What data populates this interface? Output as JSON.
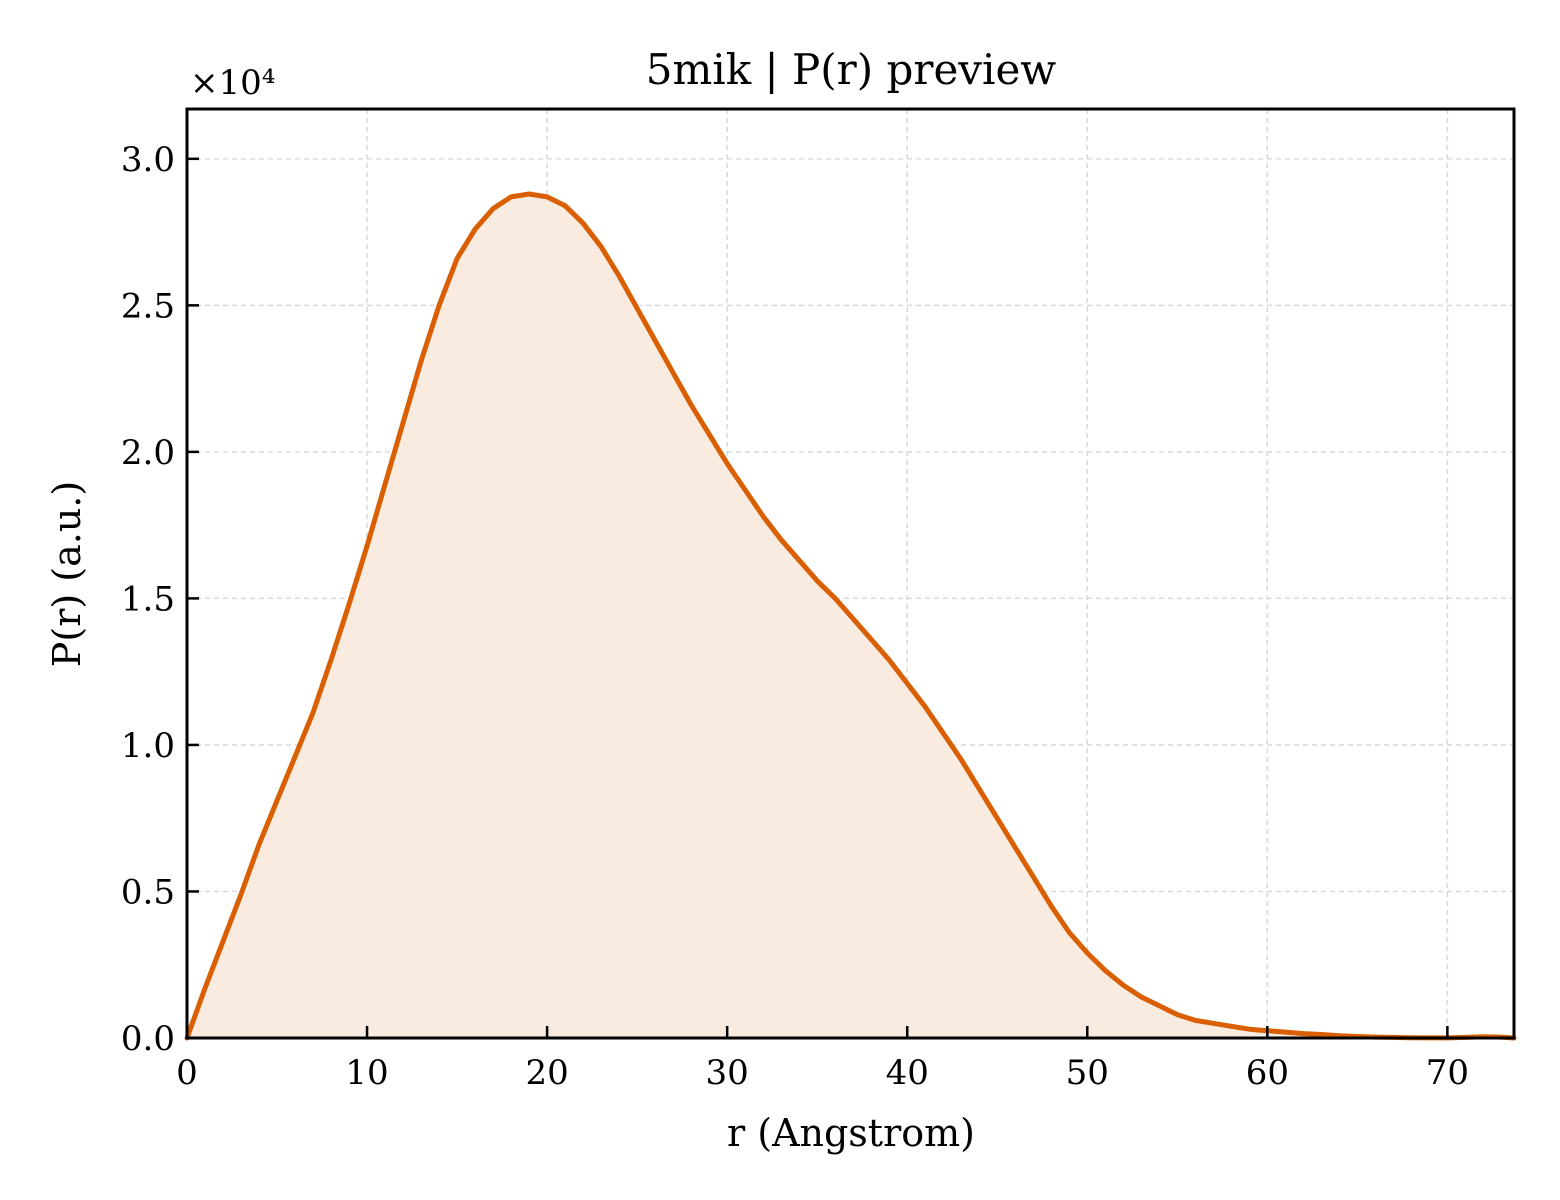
{
  "chart_data": {
    "type": "area",
    "title": "5mik | P(r) preview",
    "xlabel": "r (Angstrom)",
    "ylabel": "P(r) (a.u.)",
    "y_multiplier_label": "×10⁴",
    "xlim": [
      0,
      73.7
    ],
    "ylim": [
      0,
      31700
    ],
    "x_ticks": [
      0,
      10,
      20,
      30,
      40,
      50,
      60,
      70
    ],
    "x_tick_labels": [
      "0",
      "10",
      "20",
      "30",
      "40",
      "50",
      "60",
      "70"
    ],
    "y_ticks": [
      0,
      5000,
      10000,
      15000,
      20000,
      25000,
      30000
    ],
    "y_tick_labels": [
      "0.0",
      "0.5",
      "1.0",
      "1.5",
      "2.0",
      "2.5",
      "3.0"
    ],
    "grid": true,
    "line_color": "#d95f02",
    "fill_color": "#f9ebe0",
    "series": [
      {
        "x": [
          0,
          1,
          2,
          3,
          4,
          5,
          6,
          7,
          8,
          9,
          10,
          11,
          12,
          13,
          14,
          15,
          16,
          17,
          18,
          19,
          20,
          21,
          22,
          23,
          24,
          25,
          26,
          27,
          28,
          29,
          30,
          31,
          32,
          33,
          34,
          35,
          36,
          37,
          38,
          39,
          40,
          41,
          42,
          43,
          44,
          45,
          46,
          47,
          48,
          49,
          50,
          51,
          52,
          53,
          54,
          55,
          56,
          57,
          58,
          59,
          60,
          61,
          62,
          63,
          64,
          65,
          66,
          67,
          68,
          69,
          70,
          71,
          72,
          73,
          73.7
        ],
        "y": [
          0,
          1700,
          3300,
          4900,
          6600,
          8100,
          9600,
          11100,
          12900,
          14800,
          16800,
          18900,
          21000,
          23100,
          25000,
          26600,
          27600,
          28300,
          28700,
          28800,
          28700,
          28400,
          27800,
          27000,
          26000,
          24900,
          23800,
          22700,
          21600,
          20600,
          19600,
          18700,
          17800,
          17000,
          16300,
          15600,
          15000,
          14300,
          13600,
          12900,
          12100,
          11300,
          10400,
          9500,
          8500,
          7500,
          6500,
          5500,
          4500,
          3600,
          2900,
          2300,
          1800,
          1400,
          1100,
          800,
          600,
          500,
          400,
          300,
          250,
          200,
          150,
          120,
          80,
          50,
          30,
          20,
          10,
          5,
          5,
          20,
          40,
          30,
          0
        ]
      }
    ]
  }
}
